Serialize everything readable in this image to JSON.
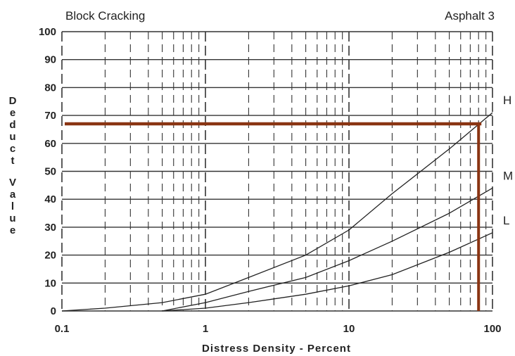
{
  "chart_data": {
    "type": "line",
    "title": "Block Cracking",
    "subtitle": "Asphalt 3",
    "xlabel": "Distress Density - Percent",
    "ylabel": "Deduct Value",
    "x_scale": "log",
    "xlim": [
      0.1,
      100
    ],
    "ylim": [
      0,
      100
    ],
    "x_tick_labels": [
      "0.1",
      "1",
      "10",
      "100"
    ],
    "y_tick_labels": [
      "0",
      "10",
      "20",
      "30",
      "40",
      "50",
      "60",
      "70",
      "80",
      "90",
      "100"
    ],
    "grid": true,
    "series": [
      {
        "name": "H",
        "x": [
          0.1,
          0.2,
          0.5,
          1,
          2,
          5,
          10,
          20,
          50,
          100
        ],
        "y": [
          0,
          1,
          3,
          6,
          12,
          20,
          29,
          42,
          58,
          71
        ]
      },
      {
        "name": "M",
        "x": [
          0.5,
          1,
          2,
          5,
          10,
          20,
          50,
          100
        ],
        "y": [
          0,
          3,
          7,
          12,
          18,
          25,
          35,
          44
        ]
      },
      {
        "name": "L",
        "x": [
          0.5,
          1,
          2,
          5,
          10,
          20,
          50,
          100
        ],
        "y": [
          0,
          1,
          3,
          6,
          9,
          13,
          21,
          28
        ]
      }
    ],
    "annotation": {
      "color": "#8a3412",
      "x": 80,
      "y": 67
    }
  }
}
